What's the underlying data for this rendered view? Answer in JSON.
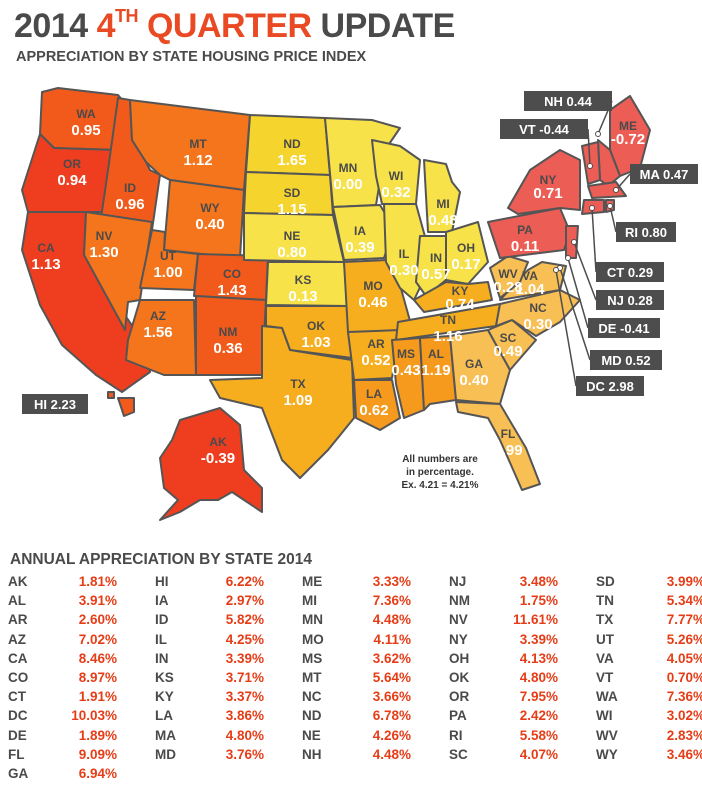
{
  "header": {
    "title_year": "2014",
    "title_ordinal": "4",
    "title_ordinal_suffix": "TH",
    "title_quarter": "QUARTER",
    "title_update": "UPDATE",
    "subtitle": "APPRECIATION BY STATE HOUSING PRICE INDEX"
  },
  "colors": {
    "accent": "#ea4a23",
    "text_dark": "#4a4a4a",
    "value_red": "#e63d17",
    "callout_bg": "#4d4d4d",
    "scale_high": "#ef3e1f",
    "scale_mid": "#f6a81c",
    "scale_low": "#f6e04a"
  },
  "map": {
    "states": [
      {
        "abbr": "WA",
        "value": "0.95"
      },
      {
        "abbr": "OR",
        "value": "0.94"
      },
      {
        "abbr": "CA",
        "value": "1.13"
      },
      {
        "abbr": "ID",
        "value": "0.96"
      },
      {
        "abbr": "NV",
        "value": "1.30"
      },
      {
        "abbr": "MT",
        "value": "1.12"
      },
      {
        "abbr": "WY",
        "value": "0.40"
      },
      {
        "abbr": "UT",
        "value": "1.00"
      },
      {
        "abbr": "CO",
        "value": "1.43"
      },
      {
        "abbr": "AZ",
        "value": "1.56"
      },
      {
        "abbr": "NM",
        "value": "0.36"
      },
      {
        "abbr": "ND",
        "value": "1.65"
      },
      {
        "abbr": "SD",
        "value": "1.15"
      },
      {
        "abbr": "NE",
        "value": "0.80"
      },
      {
        "abbr": "KS",
        "value": "0.13"
      },
      {
        "abbr": "OK",
        "value": "1.03"
      },
      {
        "abbr": "TX",
        "value": "1.09"
      },
      {
        "abbr": "MN",
        "value": "0.00"
      },
      {
        "abbr": "IA",
        "value": "0.39"
      },
      {
        "abbr": "MO",
        "value": "0.46"
      },
      {
        "abbr": "AR",
        "value": "0.52"
      },
      {
        "abbr": "LA",
        "value": "0.62"
      },
      {
        "abbr": "WI",
        "value": "0.32"
      },
      {
        "abbr": "IL",
        "value": "0.30"
      },
      {
        "abbr": "MI",
        "value": "0.48"
      },
      {
        "abbr": "IN",
        "value": "0.57"
      },
      {
        "abbr": "OH",
        "value": "0.17"
      },
      {
        "abbr": "KY",
        "value": "0.74"
      },
      {
        "abbr": "TN",
        "value": "1.16"
      },
      {
        "abbr": "MS",
        "value": "0.43"
      },
      {
        "abbr": "AL",
        "value": "1.19"
      },
      {
        "abbr": "GA",
        "value": "0.40"
      },
      {
        "abbr": "FL",
        "value": "1.99"
      },
      {
        "abbr": "SC",
        "value": "0.49"
      },
      {
        "abbr": "NC",
        "value": "0.30"
      },
      {
        "abbr": "VA",
        "value": "1.04"
      },
      {
        "abbr": "WV",
        "value": "0.28"
      },
      {
        "abbr": "PA",
        "value": "0.11"
      },
      {
        "abbr": "NY",
        "value": "0.71"
      },
      {
        "abbr": "AK",
        "value": "-0.39"
      },
      {
        "abbr": "ME",
        "value": "-0.72"
      }
    ],
    "callouts": [
      {
        "text": "NH 0.44"
      },
      {
        "text": "VT -0.44"
      },
      {
        "text": "MA 0.47"
      },
      {
        "text": "RI 0.80"
      },
      {
        "text": "CT 0.29"
      },
      {
        "text": "NJ 0.28"
      },
      {
        "text": "DE -0.41"
      },
      {
        "text": "MD 0.52"
      },
      {
        "text": "DC 2.98"
      },
      {
        "text": "HI 2.23"
      }
    ],
    "note": [
      "All numbers are",
      "in percentage.",
      "Ex. 4.21 = 4.21%"
    ]
  },
  "annual": {
    "title": "ANNUAL APPRECIATION BY STATE 2014",
    "columns": [
      [
        [
          "AK",
          "1.81%"
        ],
        [
          "AL",
          "3.91%"
        ],
        [
          "AR",
          "2.60%"
        ],
        [
          "AZ",
          "7.02%"
        ],
        [
          "CA",
          "8.46%"
        ],
        [
          "CO",
          "8.97%"
        ],
        [
          "CT",
          "1.91%"
        ],
        [
          "DC",
          "10.03%"
        ],
        [
          "DE",
          "1.89%"
        ],
        [
          "FL",
          "9.09%"
        ],
        [
          "GA",
          "6.94%"
        ]
      ],
      [
        [
          "HI",
          "6.22%"
        ],
        [
          "IA",
          "2.97%"
        ],
        [
          "ID",
          "5.82%"
        ],
        [
          "IL",
          "4.25%"
        ],
        [
          "IN",
          "3.39%"
        ],
        [
          "KS",
          "3.71%"
        ],
        [
          "KY",
          "3.37%"
        ],
        [
          "LA",
          "3.86%"
        ],
        [
          "MA",
          "4.80%"
        ],
        [
          "MD",
          "3.76%"
        ]
      ],
      [
        [
          "ME",
          "3.33%"
        ],
        [
          "MI",
          "7.36%"
        ],
        [
          "MN",
          "4.48%"
        ],
        [
          "MO",
          "4.11%"
        ],
        [
          "MS",
          "3.62%"
        ],
        [
          "MT",
          "5.64%"
        ],
        [
          "NC",
          "3.66%"
        ],
        [
          "ND",
          "6.78%"
        ],
        [
          "NE",
          "4.26%"
        ],
        [
          "NH",
          "4.48%"
        ]
      ],
      [
        [
          "NJ",
          "3.48%"
        ],
        [
          "NM",
          "1.75%"
        ],
        [
          "NV",
          "11.61%"
        ],
        [
          "NY",
          "3.39%"
        ],
        [
          "OH",
          "4.13%"
        ],
        [
          "OK",
          "4.80%"
        ],
        [
          "OR",
          "7.95%"
        ],
        [
          "PA",
          "2.42%"
        ],
        [
          "RI",
          "5.58%"
        ],
        [
          "SC",
          "4.07%"
        ]
      ],
      [
        [
          "SD",
          "3.99%"
        ],
        [
          "TN",
          "5.34%"
        ],
        [
          "TX",
          "7.77%"
        ],
        [
          "UT",
          "5.26%"
        ],
        [
          "VA",
          "4.05%"
        ],
        [
          "VT",
          "0.70%"
        ],
        [
          "WA",
          "7.36%"
        ],
        [
          "WI",
          "3.02%"
        ],
        [
          "WV",
          "2.83%"
        ],
        [
          "WY",
          "3.46%"
        ]
      ]
    ]
  }
}
